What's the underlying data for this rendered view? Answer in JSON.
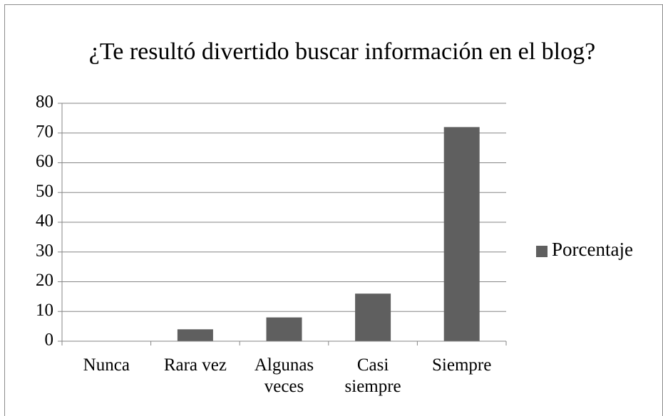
{
  "chart_data": {
    "type": "bar",
    "title": "¿Te resultó divertido buscar información en el blog?",
    "categories": [
      "Nunca",
      "Rara vez",
      "Algunas veces",
      "Casi siempre",
      "Siempre"
    ],
    "series": [
      {
        "name": "Porcentaje",
        "color": "#5f5f5f",
        "values": [
          0,
          4,
          8,
          16,
          72
        ]
      }
    ],
    "ylim": [
      0,
      80
    ],
    "yticks": [
      0,
      10,
      20,
      30,
      40,
      50,
      60,
      70,
      80
    ],
    "grid": true,
    "legend": "right"
  }
}
